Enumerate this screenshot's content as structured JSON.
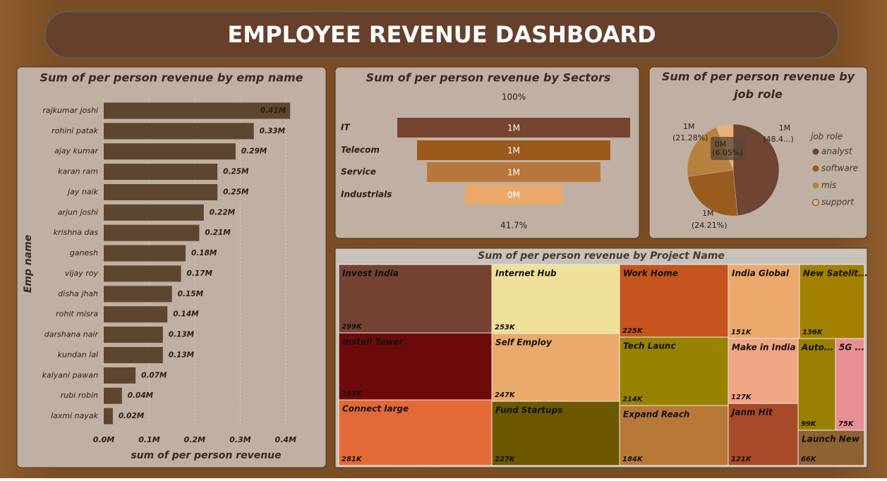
{
  "title": "EMPLOYEE REVENUE DASHBOARD",
  "chart_data": [
    {
      "type": "bar",
      "orientation": "horizontal",
      "title": "Sum of per person revenue by emp name",
      "x_label": "sum of per person revenue",
      "y_label": "Emp name",
      "categories": [
        "rajkumar joshi",
        "rohini patak",
        "ajay kumar",
        "karan ram",
        "jay naik",
        "arjun joshi",
        "krishna das",
        "ganesh",
        "vijay roy",
        "disha jhah",
        "rohit misra",
        "darshana nair",
        "kundan lal",
        "kalyani pawan",
        "rubi robin",
        "laxmi nayak"
      ],
      "values": [
        410000,
        330000,
        290000,
        250000,
        250000,
        220000,
        210000,
        180000,
        170000,
        150000,
        140000,
        130000,
        130000,
        70000,
        40000,
        20000
      ],
      "value_labels": [
        "0.41M",
        "0.33M",
        "0.29M",
        "0.25M",
        "0.25M",
        "0.22M",
        "0.21M",
        "0.18M",
        "0.17M",
        "0.15M",
        "0.14M",
        "0.13M",
        "0.13M",
        "0.07M",
        "0.04M",
        "0.02M"
      ],
      "color": "#5e4530",
      "xlim": [
        0,
        450000
      ],
      "xticks": [
        {
          "value": 0,
          "label": "0.0M"
        },
        {
          "value": 100000,
          "label": "0.1M"
        },
        {
          "value": 200000,
          "label": "0.2M"
        },
        {
          "value": 300000,
          "label": "0.3M"
        },
        {
          "value": 400000,
          "label": "0.4M"
        }
      ],
      "grid": true
    },
    {
      "type": "funnel",
      "title": "Sum of per person revenue by Sectors",
      "categories": [
        "IT",
        "Telecom",
        "Service",
        "Industrials"
      ],
      "values": [
        1000000,
        830000,
        745000,
        417000
      ],
      "value_labels": [
        "1M",
        "1M",
        "1M",
        "0M"
      ],
      "colors": [
        "#764431",
        "#9b5a1c",
        "#b8773a",
        "#eaa96b"
      ],
      "annotations": [
        "100%",
        "41.7%"
      ]
    },
    {
      "type": "pie",
      "title": "Sum of per person revenue by job role",
      "legend_title": "job role",
      "legend": "right",
      "categories": [
        "analyst",
        "software",
        "mis",
        "support"
      ],
      "values": [
        1453800,
        726300,
        638400,
        181500
      ],
      "value_labels": [
        "1M",
        "1M",
        "1M",
        "0M"
      ],
      "percent_labels": [
        "(48.4...)",
        "(24.21%)",
        "(21.28%)",
        "(6.05%)"
      ],
      "colors": [
        "#6e4433",
        "#9a5b1f",
        "#b7813e",
        "#e8b07a"
      ]
    },
    {
      "type": "treemap",
      "title": "Sum of per person revenue by Project Name",
      "categories": [
        "Invest India",
        "Install Tower",
        "Connect large",
        "Internet Hub",
        "Self Employ",
        "Fund Startups",
        "Work Home",
        "Tech Launc",
        "Expand Reach",
        "India Global",
        "New Satelit...",
        "Make in India",
        "Janm Hit",
        "Auto...",
        "5G ...",
        "Launch New"
      ],
      "values": [
        299000,
        293000,
        281000,
        253000,
        247000,
        227000,
        225000,
        214000,
        184000,
        151000,
        136000,
        127000,
        121000,
        99000,
        75000,
        66000
      ],
      "value_labels": [
        "299K",
        "293K",
        "281K",
        "253K",
        "247K",
        "227K",
        "225K",
        "214K",
        "184K",
        "151K",
        "136K",
        "127K",
        "121K",
        "99K",
        "75K",
        "66K"
      ],
      "colors": [
        "#734232",
        "#6e0a0b",
        "#e36a36",
        "#efe09a",
        "#eaaa6b",
        "#6b5800",
        "#c5541f",
        "#978300",
        "#b87838",
        "#eca96b",
        "#a28100",
        "#f0a585",
        "#a84a29",
        "#9a8000",
        "#e88e95",
        "#8e6233"
      ]
    }
  ]
}
